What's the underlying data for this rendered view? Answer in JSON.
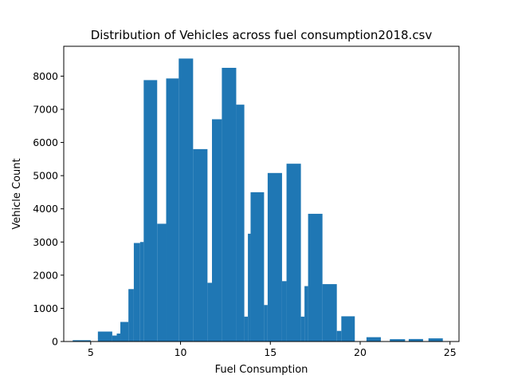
{
  "chart_data": {
    "type": "bar",
    "title": "Distribution of Vehicles across fuel consumption2018.csv",
    "xlabel": "Fuel Consumption",
    "ylabel": "Vehicle Count",
    "xlim": [
      3.5,
      25.5
    ],
    "ylim": [
      0,
      8900
    ],
    "x_ticks": [
      5,
      10,
      15,
      20,
      25
    ],
    "y_ticks": [
      0,
      1000,
      2000,
      3000,
      4000,
      5000,
      6000,
      7000,
      8000
    ],
    "grid": false,
    "legend": "none",
    "color": "#1f77b4",
    "bins": [
      {
        "start": 4.0,
        "end": 5.0,
        "value": 40
      },
      {
        "start": 5.0,
        "end": 5.4,
        "value": 10
      },
      {
        "start": 5.4,
        "end": 6.2,
        "value": 300
      },
      {
        "start": 6.2,
        "end": 6.45,
        "value": 180
      },
      {
        "start": 6.45,
        "end": 6.65,
        "value": 240
      },
      {
        "start": 6.65,
        "end": 7.1,
        "value": 590
      },
      {
        "start": 7.1,
        "end": 7.4,
        "value": 1580
      },
      {
        "start": 7.4,
        "end": 7.75,
        "value": 2970
      },
      {
        "start": 7.75,
        "end": 7.95,
        "value": 3000
      },
      {
        "start": 7.95,
        "end": 8.7,
        "value": 7880
      },
      {
        "start": 8.7,
        "end": 9.2,
        "value": 3550
      },
      {
        "start": 9.2,
        "end": 9.9,
        "value": 7930
      },
      {
        "start": 9.9,
        "end": 10.7,
        "value": 8530
      },
      {
        "start": 10.7,
        "end": 11.5,
        "value": 5800
      },
      {
        "start": 11.5,
        "end": 11.75,
        "value": 1770
      },
      {
        "start": 11.75,
        "end": 12.3,
        "value": 6700
      },
      {
        "start": 12.3,
        "end": 13.1,
        "value": 8250
      },
      {
        "start": 13.1,
        "end": 13.55,
        "value": 7140
      },
      {
        "start": 13.55,
        "end": 13.75,
        "value": 750
      },
      {
        "start": 13.75,
        "end": 13.9,
        "value": 3250
      },
      {
        "start": 13.9,
        "end": 14.65,
        "value": 4500
      },
      {
        "start": 14.65,
        "end": 14.85,
        "value": 1100
      },
      {
        "start": 14.85,
        "end": 15.65,
        "value": 5080
      },
      {
        "start": 15.65,
        "end": 15.9,
        "value": 1820
      },
      {
        "start": 15.9,
        "end": 16.7,
        "value": 5360
      },
      {
        "start": 16.7,
        "end": 16.9,
        "value": 750
      },
      {
        "start": 16.9,
        "end": 17.1,
        "value": 1670
      },
      {
        "start": 17.1,
        "end": 17.9,
        "value": 3850
      },
      {
        "start": 17.9,
        "end": 18.7,
        "value": 1730
      },
      {
        "start": 18.7,
        "end": 18.95,
        "value": 320
      },
      {
        "start": 18.95,
        "end": 19.7,
        "value": 760
      },
      {
        "start": 19.7,
        "end": 20.35,
        "value": 0
      },
      {
        "start": 20.35,
        "end": 21.15,
        "value": 130
      },
      {
        "start": 21.15,
        "end": 21.65,
        "value": 0
      },
      {
        "start": 21.65,
        "end": 22.5,
        "value": 70
      },
      {
        "start": 22.5,
        "end": 22.7,
        "value": 0
      },
      {
        "start": 22.7,
        "end": 23.5,
        "value": 75
      },
      {
        "start": 23.5,
        "end": 23.8,
        "value": 0
      },
      {
        "start": 23.8,
        "end": 24.6,
        "value": 95
      }
    ]
  }
}
